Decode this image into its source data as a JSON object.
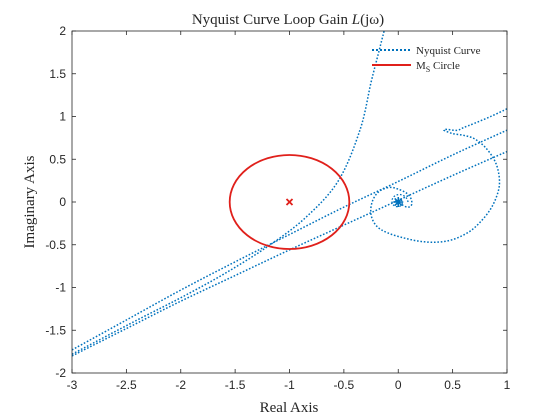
{
  "chart_data": {
    "type": "line",
    "title": "Nyquist Curve Loop Gain L(jω)",
    "title_parts": {
      "prefix": "Nyquist Curve Loop Gain ",
      "func": "L",
      "arg": "(jω)"
    },
    "xlabel": "Real Axis",
    "ylabel": "Imaginary Axis",
    "xlim": [
      -3,
      1
    ],
    "ylim": [
      -2,
      2
    ],
    "xticks": [
      -3,
      -2.5,
      -2,
      -1.5,
      -1,
      -0.5,
      0,
      0.5,
      1
    ],
    "yticks": [
      -2,
      -1.5,
      -1,
      -0.5,
      0,
      0.5,
      1,
      1.5,
      2
    ],
    "grid": false,
    "legend_position": "top-right",
    "series": [
      {
        "name": "Nyquist Curve",
        "style": "dotted",
        "color": "#0072BD",
        "segments": [
          {
            "x": [
              -3.0,
              -2.5,
              -2.0,
              -1.5,
              -1.0,
              -0.5,
              0.0,
              0.5,
              1.0
            ],
            "y": [
              -1.8,
              -1.48,
              -1.16,
              -0.86,
              -0.56,
              -0.27,
              0.02,
              0.31,
              0.59
            ]
          },
          {
            "x": [
              -3.0,
              -2.5,
              -2.0,
              -1.5,
              -1.0,
              -0.5,
              0.0,
              0.5,
              1.0
            ],
            "y": [
              -1.73,
              -1.38,
              -1.03,
              -0.7,
              -0.38,
              -0.06,
              0.24,
              0.55,
              0.84
            ]
          },
          {
            "x": [
              -3.0,
              -2.4,
              -2.0,
              -1.6,
              -1.2,
              -0.85,
              -0.55,
              -0.35,
              -0.25,
              -0.18,
              -0.13
            ],
            "y": [
              -1.78,
              -1.38,
              -1.12,
              -0.84,
              -0.52,
              -0.18,
              0.25,
              0.85,
              1.4,
              1.75,
              2.0
            ]
          },
          {
            "x": [
              1.0,
              0.85,
              0.7,
              0.6,
              0.55,
              0.5,
              0.45,
              0.42,
              0.5,
              0.6,
              0.7,
              0.8,
              0.88,
              0.92,
              0.93,
              0.9,
              0.84,
              0.75,
              0.65,
              0.5,
              0.35,
              0.2,
              0.05,
              -0.1,
              -0.2,
              -0.25,
              -0.24,
              -0.18,
              -0.08,
              0.0,
              0.08,
              0.12,
              0.12,
              0.08,
              0.02
            ],
            "y": [
              1.09,
              1.0,
              0.92,
              0.87,
              0.84,
              0.84,
              0.85,
              0.84,
              0.8,
              0.78,
              0.74,
              0.64,
              0.5,
              0.36,
              0.2,
              0.05,
              -0.1,
              -0.24,
              -0.35,
              -0.44,
              -0.47,
              -0.46,
              -0.42,
              -0.36,
              -0.28,
              -0.15,
              0.0,
              0.12,
              0.17,
              0.15,
              0.1,
              0.03,
              -0.04,
              -0.06,
              -0.02
            ]
          }
        ]
      },
      {
        "name": "M_S Circle",
        "style": "solid",
        "color": "#E0201B",
        "center": [
          -1,
          0
        ],
        "radius": 0.55
      }
    ],
    "markers": [
      {
        "x": -1,
        "y": 0,
        "symbol": "x",
        "color": "#E0201B"
      },
      {
        "x": 0,
        "y": 0,
        "symbol": "*",
        "color": "#0072BD"
      }
    ],
    "legend": {
      "nyquist_label": "Nyquist Curve",
      "ms_label_main": "M",
      "ms_label_sub": "S",
      "ms_label_rest": " Circle"
    }
  }
}
